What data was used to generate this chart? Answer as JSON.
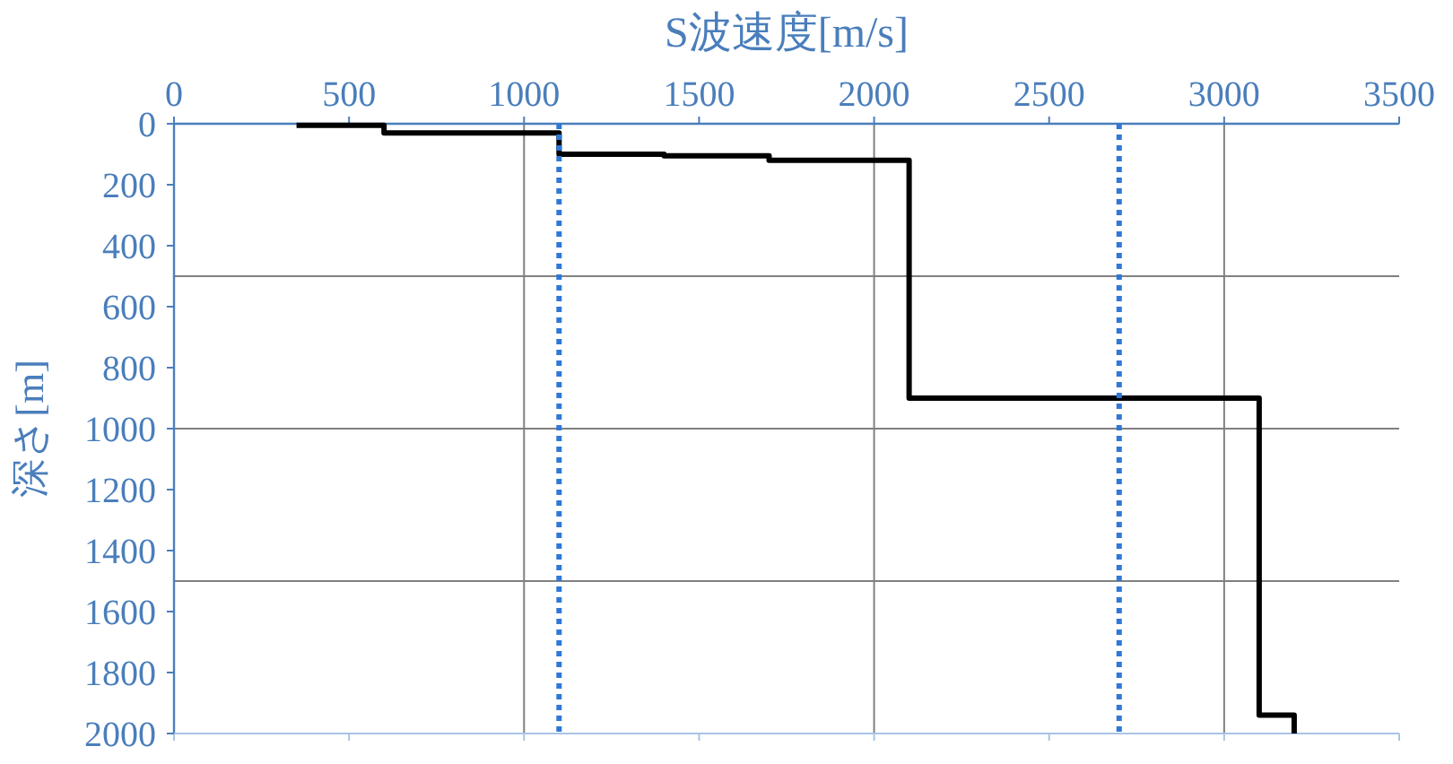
{
  "chart_data": {
    "type": "line",
    "xlabel": "S波速度[m/s]",
    "ylabel": "深さ[m]",
    "xlim": [
      0,
      3500
    ],
    "xticks": [
      0,
      500,
      1000,
      1500,
      2000,
      2500,
      3000,
      3500
    ],
    "ylim": [
      2000,
      0
    ],
    "yticks": [
      0,
      200,
      400,
      600,
      800,
      1000,
      1200,
      1400,
      1600,
      1800,
      2000
    ],
    "marker": "none",
    "line_style": "solid",
    "series": [
      {
        "color": "#000000",
        "x": [
          350,
          600,
          600,
          1100,
          1100,
          1400,
          1400,
          1700,
          1700,
          2100,
          2100,
          3100,
          3100,
          3200,
          3200
        ],
        "values": [
          5,
          5,
          30,
          30,
          100,
          100,
          105,
          105,
          120,
          120,
          900,
          900,
          1940,
          1940,
          2000
        ]
      }
    ],
    "ref_lines": [
      {
        "axis": "x",
        "value": 1000,
        "color": "#808080",
        "line_style": "solid"
      },
      {
        "axis": "x",
        "value": 2000,
        "color": "#808080",
        "line_style": "solid"
      },
      {
        "axis": "x",
        "value": 3000,
        "color": "#808080",
        "line_style": "solid"
      },
      {
        "axis": "y",
        "value": 500,
        "color": "#808080",
        "line_style": "solid"
      },
      {
        "axis": "y",
        "value": 1000,
        "color": "#808080",
        "line_style": "solid"
      },
      {
        "axis": "y",
        "value": 1500,
        "color": "#808080",
        "line_style": "solid"
      },
      {
        "axis": "x",
        "value": 1100,
        "color": "#2f78d6",
        "line_style": "dotted"
      },
      {
        "axis": "x",
        "value": 2700,
        "color": "#2f78d6",
        "line_style": "dotted"
      }
    ]
  }
}
